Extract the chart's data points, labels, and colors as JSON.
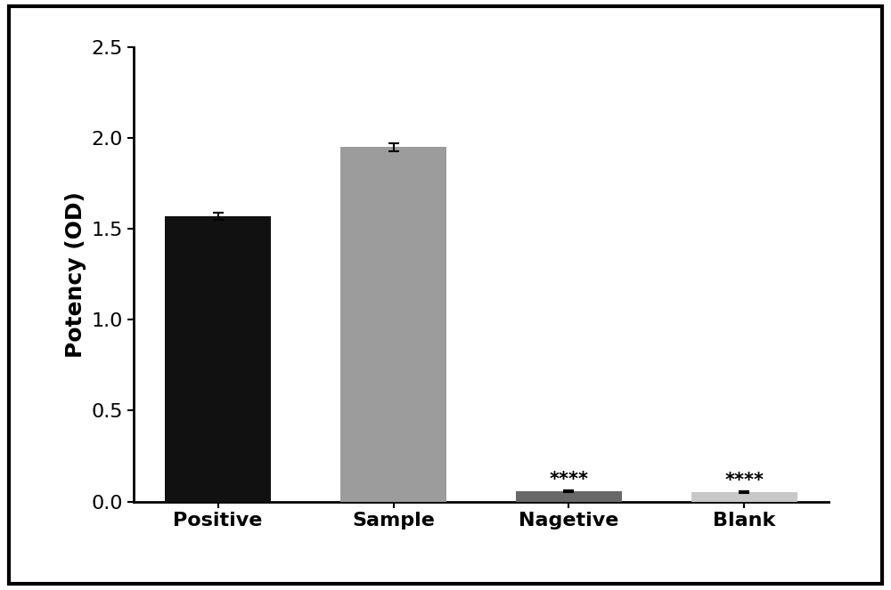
{
  "categories": [
    "Positive",
    "Sample",
    "Nagetive",
    "Blank"
  ],
  "values": [
    1.57,
    1.95,
    0.055,
    0.05
  ],
  "errors": [
    0.02,
    0.022,
    0.005,
    0.005
  ],
  "bar_colors": [
    "#111111",
    "#9c9c9c",
    "#686868",
    "#c8c8c8"
  ],
  "ylabel": "Potency (OD)",
  "ylim": [
    0,
    2.5
  ],
  "yticks": [
    0.0,
    0.5,
    1.0,
    1.5,
    2.0,
    2.5
  ],
  "significance_labels": [
    "",
    "",
    "****",
    "****"
  ],
  "bar_width": 0.6,
  "background_color": "#ffffff",
  "ylabel_fontsize": 18,
  "tick_fontsize": 16,
  "sig_fontsize": 15
}
